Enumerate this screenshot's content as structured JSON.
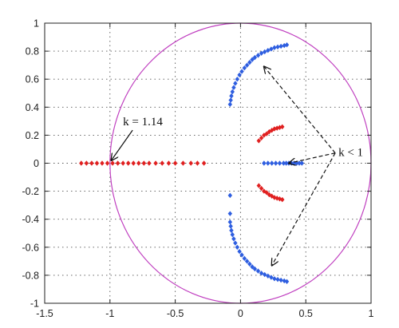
{
  "chart_data": {
    "type": "scatter",
    "title": "",
    "xlabel": "",
    "ylabel": "",
    "xlim": [
      -1.5,
      1
    ],
    "ylim": [
      -1,
      1
    ],
    "grid": true,
    "x_ticks": [
      "-1.5",
      "-1",
      "-0.5",
      "0",
      "0.5",
      "1"
    ],
    "y_ticks": [
      "1",
      "0.8",
      "0.6",
      "0.4",
      "0.2",
      "0",
      "-0.2",
      "-0.4",
      "-0.6",
      "-0.8",
      "-1"
    ],
    "unit_circle": {
      "color": "#c040c0",
      "radius": 1
    },
    "series": [
      {
        "color": "#2e5ee0",
        "marker": "diamond",
        "points": [
          [
            -0.08,
            0.42
          ],
          [
            -0.075,
            0.45
          ],
          [
            -0.07,
            0.48
          ],
          [
            -0.062,
            0.51
          ],
          [
            -0.052,
            0.54
          ],
          [
            -0.04,
            0.57
          ],
          [
            -0.025,
            0.6
          ],
          [
            -0.008,
            0.63
          ],
          [
            0.01,
            0.655
          ],
          [
            0.03,
            0.68
          ],
          [
            0.05,
            0.7
          ],
          [
            0.07,
            0.72
          ],
          [
            0.09,
            0.74
          ],
          [
            0.11,
            0.755
          ],
          [
            0.135,
            0.77
          ],
          [
            0.16,
            0.785
          ],
          [
            0.185,
            0.795
          ],
          [
            0.21,
            0.805
          ],
          [
            0.235,
            0.815
          ],
          [
            0.26,
            0.825
          ],
          [
            0.285,
            0.83
          ],
          [
            0.31,
            0.835
          ],
          [
            0.335,
            0.84
          ],
          [
            0.355,
            0.845
          ],
          [
            -0.08,
            -0.23
          ],
          [
            -0.08,
            -0.36
          ],
          [
            -0.08,
            -0.42
          ],
          [
            -0.075,
            -0.45
          ],
          [
            -0.07,
            -0.48
          ],
          [
            -0.062,
            -0.51
          ],
          [
            -0.052,
            -0.54
          ],
          [
            -0.04,
            -0.57
          ],
          [
            -0.025,
            -0.6
          ],
          [
            -0.008,
            -0.63
          ],
          [
            0.01,
            -0.655
          ],
          [
            0.03,
            -0.68
          ],
          [
            0.05,
            -0.7
          ],
          [
            0.07,
            -0.72
          ],
          [
            0.09,
            -0.74
          ],
          [
            0.11,
            -0.755
          ],
          [
            0.135,
            -0.77
          ],
          [
            0.16,
            -0.785
          ],
          [
            0.185,
            -0.795
          ],
          [
            0.21,
            -0.805
          ],
          [
            0.235,
            -0.815
          ],
          [
            0.26,
            -0.825
          ],
          [
            0.285,
            -0.83
          ],
          [
            0.31,
            -0.835
          ],
          [
            0.335,
            -0.84
          ],
          [
            0.355,
            -0.845
          ],
          [
            0.18,
            0.0
          ],
          [
            0.21,
            0.0
          ],
          [
            0.24,
            0.0
          ],
          [
            0.27,
            0.0
          ],
          [
            0.3,
            0.0
          ],
          [
            0.33,
            0.0
          ],
          [
            0.35,
            0.0
          ],
          [
            0.37,
            0.0
          ],
          [
            0.39,
            0.0
          ],
          [
            0.41,
            0.0
          ],
          [
            0.43,
            0.0
          ],
          [
            0.45,
            0.0
          ],
          [
            0.47,
            0.0
          ]
        ]
      },
      {
        "color": "#e02020",
        "marker": "diamond",
        "points": [
          [
            -1.22,
            0.0
          ],
          [
            -1.18,
            0.0
          ],
          [
            -1.14,
            0.0
          ],
          [
            -1.1,
            0.0
          ],
          [
            -1.06,
            0.0
          ],
          [
            -1.02,
            0.0
          ],
          [
            -0.98,
            0.0
          ],
          [
            -0.94,
            0.0
          ],
          [
            -0.9,
            0.0
          ],
          [
            -0.86,
            0.0
          ],
          [
            -0.82,
            0.0
          ],
          [
            -0.78,
            0.0
          ],
          [
            -0.74,
            0.0
          ],
          [
            -0.7,
            0.0
          ],
          [
            -0.65,
            0.0
          ],
          [
            -0.6,
            0.0
          ],
          [
            -0.55,
            0.0
          ],
          [
            -0.5,
            0.0
          ],
          [
            -0.44,
            0.0
          ],
          [
            -0.38,
            0.0
          ],
          [
            -0.33,
            0.0
          ],
          [
            -0.28,
            0.0
          ],
          [
            0.14,
            0.16
          ],
          [
            0.16,
            0.18
          ],
          [
            0.18,
            0.2
          ],
          [
            0.2,
            0.21
          ],
          [
            0.22,
            0.225
          ],
          [
            0.24,
            0.235
          ],
          [
            0.26,
            0.245
          ],
          [
            0.28,
            0.25
          ],
          [
            0.3,
            0.255
          ],
          [
            0.32,
            0.26
          ],
          [
            0.14,
            -0.16
          ],
          [
            0.16,
            -0.18
          ],
          [
            0.18,
            -0.2
          ],
          [
            0.2,
            -0.21
          ],
          [
            0.22,
            -0.225
          ],
          [
            0.24,
            -0.235
          ],
          [
            0.26,
            -0.245
          ],
          [
            0.28,
            -0.25
          ],
          [
            0.3,
            -0.255
          ],
          [
            0.32,
            -0.26
          ]
        ]
      }
    ],
    "annotations": [
      {
        "label": "k = 1.14",
        "text_at": [
          -0.9,
          0.27
        ],
        "arrows": [
          {
            "to": [
              -0.99,
              0.02
            ],
            "style": "solid"
          }
        ]
      },
      {
        "label": "k < 1",
        "text_at": [
          0.75,
          0.05
        ],
        "arrows": [
          {
            "to": [
              0.18,
              0.69
            ],
            "style": "dashed"
          },
          {
            "to": [
              0.37,
              0.0
            ],
            "style": "dashed"
          },
          {
            "to": [
              0.24,
              -0.73
            ],
            "style": "dashed"
          }
        ]
      }
    ]
  }
}
